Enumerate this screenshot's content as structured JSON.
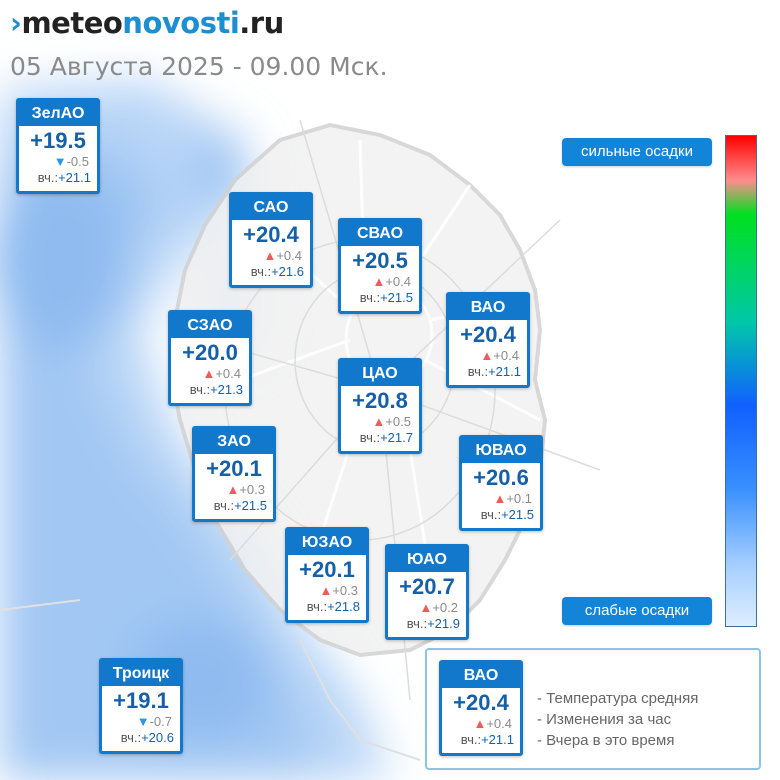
{
  "logo": {
    "mark": "›",
    "meteo": "meteo",
    "novosti": "novosti",
    "ru": ".ru"
  },
  "datetime": "05 Августа 2025 - 09.00 Мск.",
  "yesterday_prefix": "вч.:",
  "districts": [
    {
      "name": "ЗелАО",
      "temp": "+19.5",
      "dir": "down",
      "change": "-0.5",
      "yesterday": "+21.1"
    },
    {
      "name": "САО",
      "temp": "+20.4",
      "dir": "up",
      "change": "+0.4",
      "yesterday": "+21.6"
    },
    {
      "name": "СВАО",
      "temp": "+20.5",
      "dir": "up",
      "change": "+0.4",
      "yesterday": "+21.5"
    },
    {
      "name": "ВАО",
      "temp": "+20.4",
      "dir": "up",
      "change": "+0.4",
      "yesterday": "+21.1"
    },
    {
      "name": "СЗАО",
      "temp": "+20.0",
      "dir": "up",
      "change": "+0.4",
      "yesterday": "+21.3"
    },
    {
      "name": "ЦАО",
      "temp": "+20.8",
      "dir": "up",
      "change": "+0.5",
      "yesterday": "+21.7"
    },
    {
      "name": "ЗАО",
      "temp": "+20.1",
      "dir": "up",
      "change": "+0.3",
      "yesterday": "+21.5"
    },
    {
      "name": "ЮВАО",
      "temp": "+20.6",
      "dir": "up",
      "change": "+0.1",
      "yesterday": "+21.5"
    },
    {
      "name": "ЮЗАО",
      "temp": "+20.1",
      "dir": "up",
      "change": "+0.3",
      "yesterday": "+21.8"
    },
    {
      "name": "ЮАО",
      "temp": "+20.7",
      "dir": "up",
      "change": "+0.2",
      "yesterday": "+21.9"
    },
    {
      "name": "Троицк",
      "temp": "+19.1",
      "dir": "down",
      "change": "-0.7",
      "yesterday": "+20.6"
    }
  ],
  "precip_scale": {
    "high_label": "сильные осадки",
    "low_label": "слабые осадки"
  },
  "legend": {
    "example": {
      "name": "ВАО",
      "temp": "+20.4",
      "dir": "up",
      "change": "+0.4",
      "yesterday": "+21.1"
    },
    "lines": [
      "- Температура средняя",
      "- Изменения за час",
      "- Вчера в это время"
    ]
  },
  "colors": {
    "accent": "#1278cc",
    "rise": "#ef5b5b",
    "fall": "#2e96de",
    "precip_light": "#cfe3fb"
  }
}
